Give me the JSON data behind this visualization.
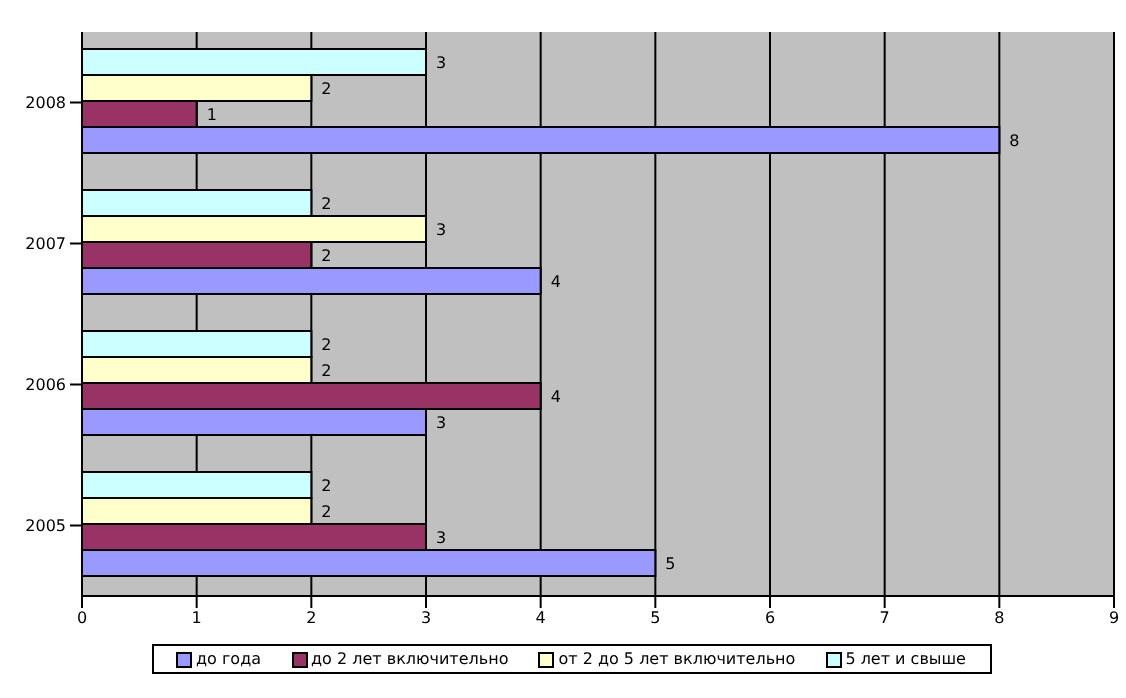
{
  "chart_data": {
    "type": "bar",
    "orientation": "horizontal",
    "categories": [
      "2008",
      "2007",
      "2006",
      "2005"
    ],
    "series": [
      {
        "name": "до года",
        "color": "#9999ff",
        "values": [
          8,
          4,
          3,
          5
        ]
      },
      {
        "name": "до 2 лет включительно",
        "color": "#993366",
        "values": [
          1,
          2,
          4,
          3
        ]
      },
      {
        "name": "от 2 до 5 лет включительно",
        "color": "#ffffcc",
        "values": [
          2,
          3,
          2,
          2
        ]
      },
      {
        "name": "5 лет и свыше",
        "color": "#ccffff",
        "values": [
          3,
          2,
          2,
          2
        ]
      }
    ],
    "xlim": [
      0,
      9
    ],
    "xticks": [
      0,
      1,
      2,
      3,
      4,
      5,
      6,
      7,
      8,
      9
    ],
    "grid": "x",
    "legend": "bottom",
    "data_labels": true
  }
}
